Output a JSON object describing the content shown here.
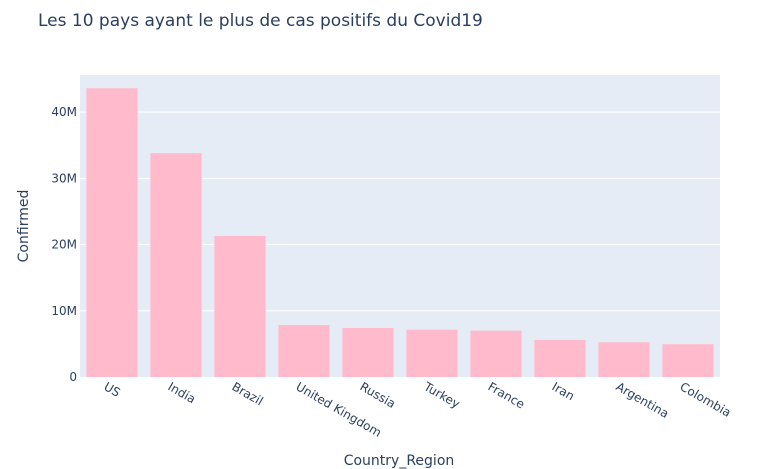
{
  "chart_data": {
    "type": "bar",
    "title": "Les 10 pays ayant le plus de cas positifs du Covid19",
    "xlabel": "Country_Region",
    "ylabel": "Confirmed",
    "categories": [
      "US",
      "India",
      "Brazil",
      "United Kingdom",
      "Russia",
      "Turkey",
      "France",
      "Iran",
      "Argentina",
      "Colombia"
    ],
    "values": [
      43600000,
      33800000,
      21300000,
      7850000,
      7400000,
      7150000,
      7000000,
      5600000,
      5250000,
      4950000
    ],
    "ylim": [
      0,
      45600000
    ],
    "yticks": [
      0,
      10000000,
      20000000,
      30000000,
      40000000
    ],
    "ytick_labels": [
      "0",
      "10M",
      "20M",
      "30M",
      "40M"
    ],
    "grid": true,
    "colors": {
      "bar": "#ffbbcc",
      "plot_bg": "#e5ecf6",
      "grid": "#ffffff",
      "text": "#2a3f5f"
    }
  }
}
